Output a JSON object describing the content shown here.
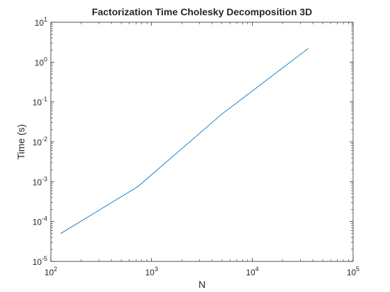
{
  "chart_data": {
    "type": "line",
    "title": "Factorization Time Cholesky Decomposition 3D",
    "xlabel": "N",
    "ylabel": "Time (s)",
    "xscale": "log",
    "yscale": "log",
    "xlim": [
      100,
      100000
    ],
    "ylim": [
      1e-05,
      10
    ],
    "grid": false,
    "legend": "none",
    "x_ticks": [
      {
        "value": 100,
        "base": "10",
        "exp": "2"
      },
      {
        "value": 1000,
        "base": "10",
        "exp": "3"
      },
      {
        "value": 10000,
        "base": "10",
        "exp": "4"
      },
      {
        "value": 100000,
        "base": "10",
        "exp": "5"
      }
    ],
    "y_ticks": [
      {
        "value": 1e-05,
        "base": "10",
        "exp": "-5"
      },
      {
        "value": 0.0001,
        "base": "10",
        "exp": "-4"
      },
      {
        "value": 0.001,
        "base": "10",
        "exp": "-3"
      },
      {
        "value": 0.01,
        "base": "10",
        "exp": "-2"
      },
      {
        "value": 0.1,
        "base": "10",
        "exp": "-1"
      },
      {
        "value": 1,
        "base": "10",
        "exp": "0"
      },
      {
        "value": 10,
        "base": "10",
        "exp": "1"
      }
    ],
    "series": [
      {
        "color": "#0072bd",
        "points": [
          {
            "x": 125,
            "y": 5e-05
          },
          {
            "x": 729,
            "y": 0.00075
          },
          {
            "x": 5000,
            "y": 0.05
          },
          {
            "x": 35937,
            "y": 2.2
          }
        ]
      }
    ]
  }
}
